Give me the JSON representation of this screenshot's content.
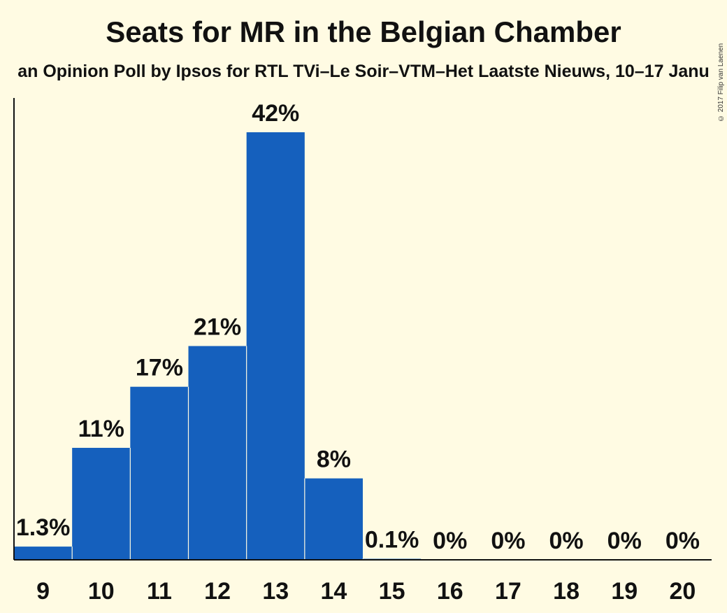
{
  "chart_data": {
    "type": "bar",
    "title": "Seats for MR in the Belgian Chamber",
    "subtitle": "an Opinion Poll by Ipsos for RTL TVi–Le Soir–VTM–Het Laatste Nieuws, 10–17 Janu",
    "copyright": "© 2017 Filip van Laenen",
    "xlabel": "",
    "ylabel": "",
    "categories": [
      "9",
      "10",
      "11",
      "12",
      "13",
      "14",
      "15",
      "16",
      "17",
      "18",
      "19",
      "20"
    ],
    "values": [
      1.3,
      11,
      17,
      21,
      42,
      8,
      0.1,
      0,
      0,
      0,
      0,
      0
    ],
    "value_labels": [
      "1.3%",
      "11%",
      "17%",
      "21%",
      "42%",
      "8%",
      "0.1%",
      "0%",
      "0%",
      "0%",
      "0%",
      "0%"
    ],
    "ylim": [
      0,
      42
    ],
    "grid": false,
    "legend": "none",
    "bar_color": "#1560bd",
    "background": "#fffbe3"
  }
}
